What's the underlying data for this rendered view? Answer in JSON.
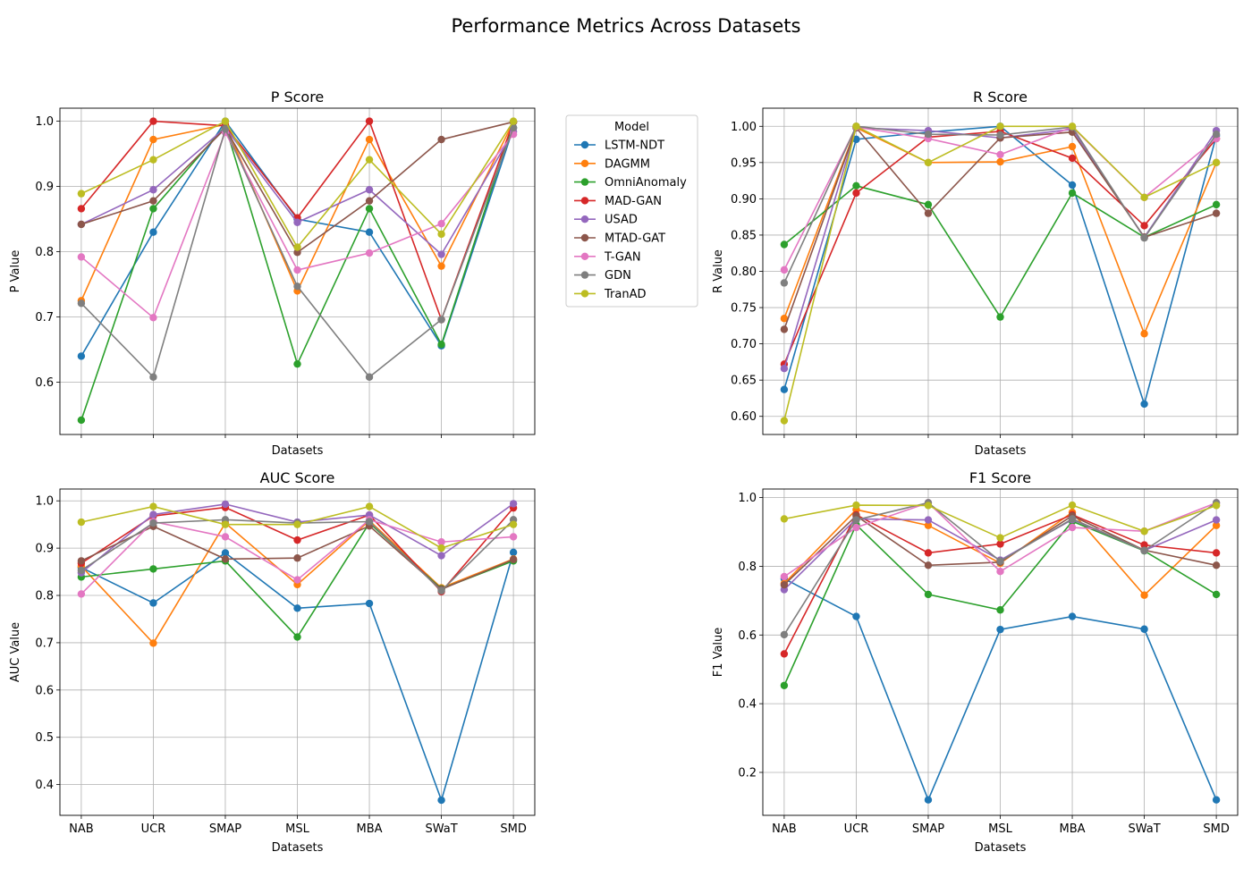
{
  "figure": {
    "title": "Performance Metrics Across Datasets"
  },
  "legend": {
    "title": "Model",
    "placement": "right of top-left subplot"
  },
  "colors": {
    "LSTM-NDT": "#1f77b4",
    "DAGMM": "#ff7f0e",
    "OmniAnomaly": "#2ca02c",
    "MAD-GAN": "#d62728",
    "USAD": "#9467bd",
    "MTAD-GAT": "#8c564b",
    "T-GAN": "#e377c2",
    "GDN": "#7f7f7f",
    "TranAD": "#bcbd22"
  },
  "chart_data": [
    {
      "type": "line",
      "title": "P Score",
      "xlabel": "Datasets",
      "ylabel": "P Value",
      "categories": [
        "NAB",
        "UCR",
        "SMAP",
        "MSL",
        "MBA",
        "SWaT",
        "SMD"
      ],
      "show_xticklabels": false,
      "grid": true,
      "ylim": [
        0.52,
        1.02
      ],
      "yticks": [
        "0.6",
        "0.7",
        "0.8",
        "0.9",
        "1.0"
      ],
      "series": [
        {
          "name": "LSTM-NDT",
          "values": [
            0.64,
            0.83,
            1.0,
            0.85,
            0.83,
            0.656,
            0.99
          ]
        },
        {
          "name": "DAGMM",
          "values": [
            0.725,
            0.972,
            0.995,
            0.74,
            0.972,
            0.778,
            0.999
          ]
        },
        {
          "name": "OmniAnomaly",
          "values": [
            0.542,
            0.866,
            0.993,
            0.628,
            0.866,
            0.658,
            0.999
          ]
        },
        {
          "name": "MAD-GAN",
          "values": [
            0.866,
            1.0,
            0.993,
            0.852,
            1.0,
            0.696,
            0.999
          ]
        },
        {
          "name": "USAD",
          "values": [
            0.842,
            0.895,
            0.99,
            0.845,
            0.895,
            0.796,
            0.984
          ]
        },
        {
          "name": "MTAD-GAT",
          "values": [
            0.842,
            0.878,
            0.989,
            0.799,
            0.878,
            0.972,
            0.999
          ]
        },
        {
          "name": "T-GAN",
          "values": [
            0.792,
            0.699,
            0.983,
            0.772,
            0.798,
            0.843,
            0.98
          ]
        },
        {
          "name": "GDN",
          "values": [
            0.721,
            0.608,
            0.988,
            0.747,
            0.608,
            0.696,
            0.99
          ]
        },
        {
          "name": "TranAD",
          "values": [
            0.889,
            0.941,
            1.0,
            0.807,
            0.941,
            0.827,
            1.0
          ]
        }
      ]
    },
    {
      "type": "line",
      "title": "R Score",
      "xlabel": "Datasets",
      "ylabel": "R Value",
      "categories": [
        "NAB",
        "UCR",
        "SMAP",
        "MSL",
        "MBA",
        "SWaT",
        "SMD"
      ],
      "show_xticklabels": false,
      "grid": true,
      "ylim": [
        0.575,
        1.025
      ],
      "yticks": [
        "0.60",
        "0.65",
        "0.70",
        "0.75",
        "0.80",
        "0.85",
        "0.90",
        "0.95",
        "1.00"
      ],
      "series": [
        {
          "name": "LSTM-NDT",
          "values": [
            0.637,
            0.982,
            0.992,
            1.0,
            0.919,
            0.617,
            0.987
          ]
        },
        {
          "name": "DAGMM",
          "values": [
            0.735,
            0.998,
            0.95,
            0.951,
            0.972,
            0.714,
            0.95
          ]
        },
        {
          "name": "OmniAnomaly",
          "values": [
            0.837,
            0.918,
            0.892,
            0.737,
            0.908,
            0.847,
            0.892
          ]
        },
        {
          "name": "MAD-GAN",
          "values": [
            0.672,
            0.908,
            0.985,
            0.993,
            0.956,
            0.863,
            0.983
          ]
        },
        {
          "name": "USAD",
          "values": [
            0.666,
            0.998,
            0.994,
            0.984,
            0.996,
            0.847,
            0.994
          ]
        },
        {
          "name": "MTAD-GAT",
          "values": [
            0.72,
            0.998,
            0.88,
            0.984,
            0.992,
            0.847,
            0.88
          ]
        },
        {
          "name": "T-GAN",
          "values": [
            0.802,
            0.999,
            0.983,
            0.961,
            0.999,
            0.902,
            0.983
          ]
        },
        {
          "name": "GDN",
          "values": [
            0.784,
            1.0,
            0.989,
            0.988,
            0.999,
            0.846,
            0.989
          ]
        },
        {
          "name": "TranAD",
          "values": [
            0.594,
            1.0,
            0.95,
            1.0,
            1.0,
            0.902,
            0.95
          ]
        }
      ]
    },
    {
      "type": "line",
      "title": "AUC Score",
      "xlabel": "Datasets",
      "ylabel": "AUC Value",
      "categories": [
        "NAB",
        "UCR",
        "SMAP",
        "MSL",
        "MBA",
        "SWaT",
        "SMD"
      ],
      "show_xticklabels": true,
      "grid": true,
      "ylim": [
        0.335,
        1.025
      ],
      "yticks": [
        "0.4",
        "0.5",
        "0.6",
        "0.7",
        "0.8",
        "0.9",
        "1.0"
      ],
      "series": [
        {
          "name": "LSTM-NDT",
          "values": [
            0.859,
            0.784,
            0.89,
            0.773,
            0.783,
            0.367,
            0.891
          ]
        },
        {
          "name": "DAGMM",
          "values": [
            0.862,
            0.699,
            0.953,
            0.823,
            0.958,
            0.816,
            0.877
          ]
        },
        {
          "name": "OmniAnomaly",
          "values": [
            0.839,
            0.856,
            0.873,
            0.712,
            0.953,
            0.814,
            0.873
          ]
        },
        {
          "name": "MAD-GAN",
          "values": [
            0.868,
            0.968,
            0.986,
            0.917,
            0.97,
            0.808,
            0.985
          ]
        },
        {
          "name": "USAD",
          "values": [
            0.848,
            0.971,
            0.993,
            0.955,
            0.97,
            0.884,
            0.994
          ]
        },
        {
          "name": "MTAD-GAT",
          "values": [
            0.873,
            0.946,
            0.877,
            0.879,
            0.947,
            0.813,
            0.876
          ]
        },
        {
          "name": "T-GAN",
          "values": [
            0.803,
            0.956,
            0.924,
            0.833,
            0.96,
            0.913,
            0.924
          ]
        },
        {
          "name": "GDN",
          "values": [
            0.853,
            0.953,
            0.96,
            0.953,
            0.956,
            0.81,
            0.96
          ]
        },
        {
          "name": "TranAD",
          "values": [
            0.955,
            0.988,
            0.95,
            0.95,
            0.988,
            0.9,
            0.95
          ]
        }
      ]
    },
    {
      "type": "line",
      "title": "F1 Score",
      "xlabel": "Datasets",
      "ylabel": "F1 Value",
      "categories": [
        "NAB",
        "UCR",
        "SMAP",
        "MSL",
        "MBA",
        "SWaT",
        "SMD"
      ],
      "show_xticklabels": true,
      "grid": true,
      "ylim": [
        0.075,
        1.025
      ],
      "yticks": [
        "0.2",
        "0.4",
        "0.6",
        "0.8",
        "1.0"
      ],
      "series": [
        {
          "name": "LSTM-NDT",
          "values": [
            0.764,
            0.654,
            0.12,
            0.616,
            0.654,
            0.617,
            0.12
          ]
        },
        {
          "name": "DAGMM",
          "values": [
            0.75,
            0.965,
            0.919,
            0.809,
            0.957,
            0.716,
            0.919
          ]
        },
        {
          "name": "OmniAnomaly",
          "values": [
            0.453,
            0.921,
            0.718,
            0.673,
            0.931,
            0.845,
            0.718
          ]
        },
        {
          "name": "MAD-GAN",
          "values": [
            0.545,
            0.95,
            0.839,
            0.865,
            0.95,
            0.862,
            0.839
          ]
        },
        {
          "name": "USAD",
          "values": [
            0.732,
            0.938,
            0.935,
            0.818,
            0.936,
            0.846,
            0.935
          ]
        },
        {
          "name": "MTAD-GAT",
          "values": [
            0.746,
            0.947,
            0.803,
            0.812,
            0.947,
            0.847,
            0.803
          ]
        },
        {
          "name": "T-GAN",
          "values": [
            0.77,
            0.913,
            0.985,
            0.785,
            0.913,
            0.902,
            0.985
          ]
        },
        {
          "name": "GDN",
          "values": [
            0.601,
            0.935,
            0.985,
            0.815,
            0.938,
            0.846,
            0.985
          ]
        },
        {
          "name": "TranAD",
          "values": [
            0.938,
            0.978,
            0.977,
            0.883,
            0.978,
            0.902,
            0.977
          ]
        }
      ]
    }
  ]
}
